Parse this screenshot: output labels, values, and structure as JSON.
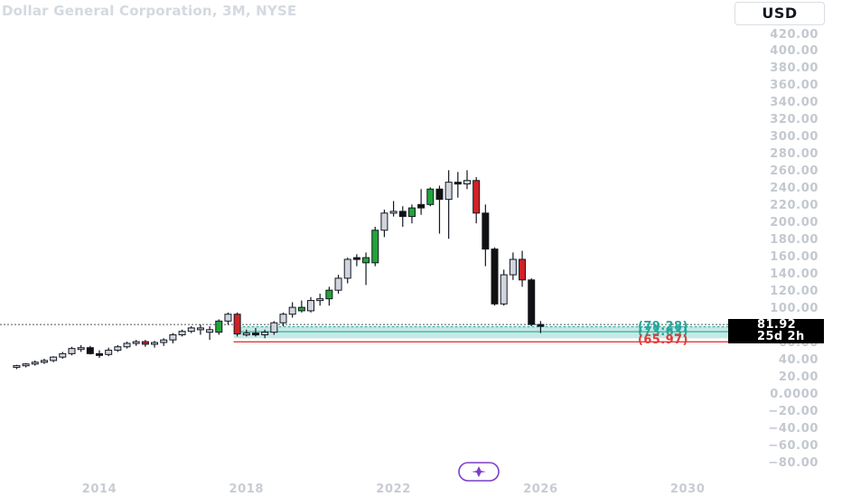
{
  "header": {
    "title": "Dollar General Corporation, 3M, NYSE",
    "currency_button": "USD"
  },
  "colors": {
    "up_candle": "#22a33a",
    "down_candle": "#111111",
    "neutral_candle": "#d1d4dc",
    "accent_red": "#d02226",
    "zone_fill": "#bfe7e2",
    "zone_border": "#26a69a",
    "support_line": "#e53935"
  },
  "chart_data": {
    "type": "candlestick",
    "title": "Dollar General Corporation, 3M, NYSE",
    "y_axis": {
      "ticks": [
        "420.00",
        "400.00",
        "380.00",
        "360.00",
        "340.00",
        "320.00",
        "300.00",
        "280.00",
        "260.00",
        "240.00",
        "220.00",
        "200.00",
        "180.00",
        "160.00",
        "140.00",
        "120.00",
        "100.00",
        "80.00",
        "60.00",
        "40.00",
        "20.00",
        "0.0000",
        "−20.00",
        "−40.00",
        "−60.00",
        "−80.00"
      ],
      "tick_values": [
        420,
        400,
        380,
        360,
        340,
        320,
        300,
        280,
        260,
        240,
        220,
        200,
        180,
        160,
        140,
        120,
        100,
        80,
        60,
        40,
        20,
        0,
        -20,
        -40,
        -60,
        -80
      ],
      "range": [
        -80,
        430
      ]
    },
    "x_axis": {
      "ticks": [
        "2014",
        "2018",
        "2022",
        "2026",
        "2030"
      ],
      "tick_years": [
        2014,
        2018,
        2022,
        2026,
        2030
      ]
    },
    "current_price": "81.92",
    "time_to_close": "25d 2h",
    "zone": {
      "upper_label": "(79.28)",
      "middle_label": "(73.63)",
      "lower_label": "(65.97)",
      "upper": 79.28,
      "middle": 73.63,
      "lower": 65.97
    },
    "candles": [
      {
        "t": 2011.75,
        "o": 33,
        "h": 35,
        "l": 30,
        "c": 34,
        "k": "n"
      },
      {
        "t": 2012.0,
        "o": 34,
        "h": 37,
        "l": 32,
        "c": 36,
        "k": "n"
      },
      {
        "t": 2012.25,
        "o": 36,
        "h": 40,
        "l": 34,
        "c": 38,
        "k": "n"
      },
      {
        "t": 2012.5,
        "o": 38,
        "h": 42,
        "l": 36,
        "c": 40,
        "k": "n"
      },
      {
        "t": 2012.75,
        "o": 40,
        "h": 45,
        "l": 38,
        "c": 44,
        "k": "n"
      },
      {
        "t": 2013.0,
        "o": 44,
        "h": 50,
        "l": 42,
        "c": 48,
        "k": "n"
      },
      {
        "t": 2013.25,
        "o": 48,
        "h": 56,
        "l": 46,
        "c": 54,
        "k": "n"
      },
      {
        "t": 2013.5,
        "o": 54,
        "h": 58,
        "l": 50,
        "c": 55,
        "k": "n"
      },
      {
        "t": 2013.75,
        "o": 55,
        "h": 57,
        "l": 47,
        "c": 48,
        "k": "d"
      },
      {
        "t": 2014.0,
        "o": 48,
        "h": 52,
        "l": 43,
        "c": 47,
        "k": "d"
      },
      {
        "t": 2014.25,
        "o": 47,
        "h": 55,
        "l": 45,
        "c": 52,
        "k": "n"
      },
      {
        "t": 2014.5,
        "o": 52,
        "h": 58,
        "l": 50,
        "c": 56,
        "k": "n"
      },
      {
        "t": 2014.75,
        "o": 56,
        "h": 62,
        "l": 54,
        "c": 60,
        "k": "n"
      },
      {
        "t": 2015.0,
        "o": 60,
        "h": 64,
        "l": 57,
        "c": 62,
        "k": "n"
      },
      {
        "t": 2015.25,
        "o": 62,
        "h": 64,
        "l": 56,
        "c": 59,
        "k": "r"
      },
      {
        "t": 2015.5,
        "o": 59,
        "h": 63,
        "l": 55,
        "c": 61,
        "k": "n"
      },
      {
        "t": 2015.75,
        "o": 61,
        "h": 66,
        "l": 57,
        "c": 64,
        "k": "n"
      },
      {
        "t": 2016.0,
        "o": 64,
        "h": 72,
        "l": 60,
        "c": 70,
        "k": "n"
      },
      {
        "t": 2016.25,
        "o": 70,
        "h": 76,
        "l": 68,
        "c": 74,
        "k": "n"
      },
      {
        "t": 2016.5,
        "o": 74,
        "h": 80,
        "l": 72,
        "c": 78,
        "k": "n"
      },
      {
        "t": 2016.75,
        "o": 78,
        "h": 82,
        "l": 70,
        "c": 76,
        "k": "n"
      },
      {
        "t": 2017.0,
        "o": 76,
        "h": 80,
        "l": 64,
        "c": 73,
        "k": "n"
      },
      {
        "t": 2017.25,
        "o": 73,
        "h": 88,
        "l": 70,
        "c": 86,
        "k": "g"
      },
      {
        "t": 2017.5,
        "o": 86,
        "h": 96,
        "l": 82,
        "c": 94,
        "k": "n"
      },
      {
        "t": 2017.75,
        "o": 94,
        "h": 96,
        "l": 68,
        "c": 71,
        "k": "r"
      },
      {
        "t": 2018.0,
        "o": 71,
        "h": 76,
        "l": 68,
        "c": 72,
        "k": "n"
      },
      {
        "t": 2018.25,
        "o": 72,
        "h": 78,
        "l": 68,
        "c": 70,
        "k": "d"
      },
      {
        "t": 2018.5,
        "o": 70,
        "h": 76,
        "l": 66,
        "c": 73,
        "k": "n"
      },
      {
        "t": 2018.75,
        "o": 73,
        "h": 86,
        "l": 70,
        "c": 84,
        "k": "n"
      },
      {
        "t": 2019.0,
        "o": 84,
        "h": 96,
        "l": 80,
        "c": 94,
        "k": "n"
      },
      {
        "t": 2019.25,
        "o": 94,
        "h": 108,
        "l": 90,
        "c": 102,
        "k": "n"
      },
      {
        "t": 2019.5,
        "o": 102,
        "h": 110,
        "l": 96,
        "c": 98,
        "k": "g"
      },
      {
        "t": 2019.75,
        "o": 98,
        "h": 114,
        "l": 96,
        "c": 110,
        "k": "n"
      },
      {
        "t": 2020.0,
        "o": 110,
        "h": 118,
        "l": 104,
        "c": 112,
        "k": "n"
      },
      {
        "t": 2020.25,
        "o": 112,
        "h": 126,
        "l": 104,
        "c": 122,
        "k": "g"
      },
      {
        "t": 2020.5,
        "o": 122,
        "h": 140,
        "l": 118,
        "c": 136,
        "k": "n"
      },
      {
        "t": 2020.75,
        "o": 136,
        "h": 160,
        "l": 130,
        "c": 158,
        "k": "n"
      },
      {
        "t": 2021.0,
        "o": 158,
        "h": 164,
        "l": 150,
        "c": 160,
        "k": "d"
      },
      {
        "t": 2021.25,
        "o": 160,
        "h": 166,
        "l": 128,
        "c": 154,
        "k": "g"
      },
      {
        "t": 2021.5,
        "o": 154,
        "h": 196,
        "l": 150,
        "c": 192,
        "k": "g"
      },
      {
        "t": 2021.75,
        "o": 192,
        "h": 216,
        "l": 184,
        "c": 212,
        "k": "n"
      },
      {
        "t": 2022.0,
        "o": 212,
        "h": 226,
        "l": 208,
        "c": 214,
        "k": "n"
      },
      {
        "t": 2022.25,
        "o": 214,
        "h": 220,
        "l": 196,
        "c": 208,
        "k": "d"
      },
      {
        "t": 2022.5,
        "o": 208,
        "h": 222,
        "l": 200,
        "c": 218,
        "k": "g"
      },
      {
        "t": 2022.75,
        "o": 218,
        "h": 240,
        "l": 210,
        "c": 222,
        "k": "d"
      },
      {
        "t": 2023.0,
        "o": 222,
        "h": 242,
        "l": 220,
        "c": 240,
        "k": "g"
      },
      {
        "t": 2023.25,
        "o": 240,
        "h": 244,
        "l": 188,
        "c": 228,
        "k": "d"
      },
      {
        "t": 2023.5,
        "o": 228,
        "h": 262,
        "l": 182,
        "c": 248,
        "k": "n"
      },
      {
        "t": 2023.75,
        "o": 248,
        "h": 260,
        "l": 230,
        "c": 246,
        "k": "d"
      },
      {
        "t": 2024.0,
        "o": 246,
        "h": 262,
        "l": 240,
        "c": 250,
        "k": "n"
      },
      {
        "t": 2024.25,
        "o": 250,
        "h": 254,
        "l": 200,
        "c": 212,
        "k": "r"
      },
      {
        "t": 2024.5,
        "o": 212,
        "h": 222,
        "l": 150,
        "c": 170,
        "k": "d"
      },
      {
        "t": 2024.75,
        "o": 170,
        "h": 172,
        "l": 104,
        "c": 106,
        "k": "d"
      },
      {
        "t": 2025.0,
        "o": 106,
        "h": 146,
        "l": 104,
        "c": 140,
        "k": "n"
      },
      {
        "t": 2025.25,
        "o": 140,
        "h": 166,
        "l": 134,
        "c": 158,
        "k": "n"
      },
      {
        "t": 2025.5,
        "o": 158,
        "h": 168,
        "l": 126,
        "c": 134,
        "k": "r"
      },
      {
        "t": 2025.75,
        "o": 134,
        "h": 136,
        "l": 80,
        "c": 82,
        "k": "d"
      },
      {
        "t": 2026.0,
        "o": 82,
        "h": 86,
        "l": 72,
        "c": 81.92,
        "k": "d"
      }
    ]
  }
}
